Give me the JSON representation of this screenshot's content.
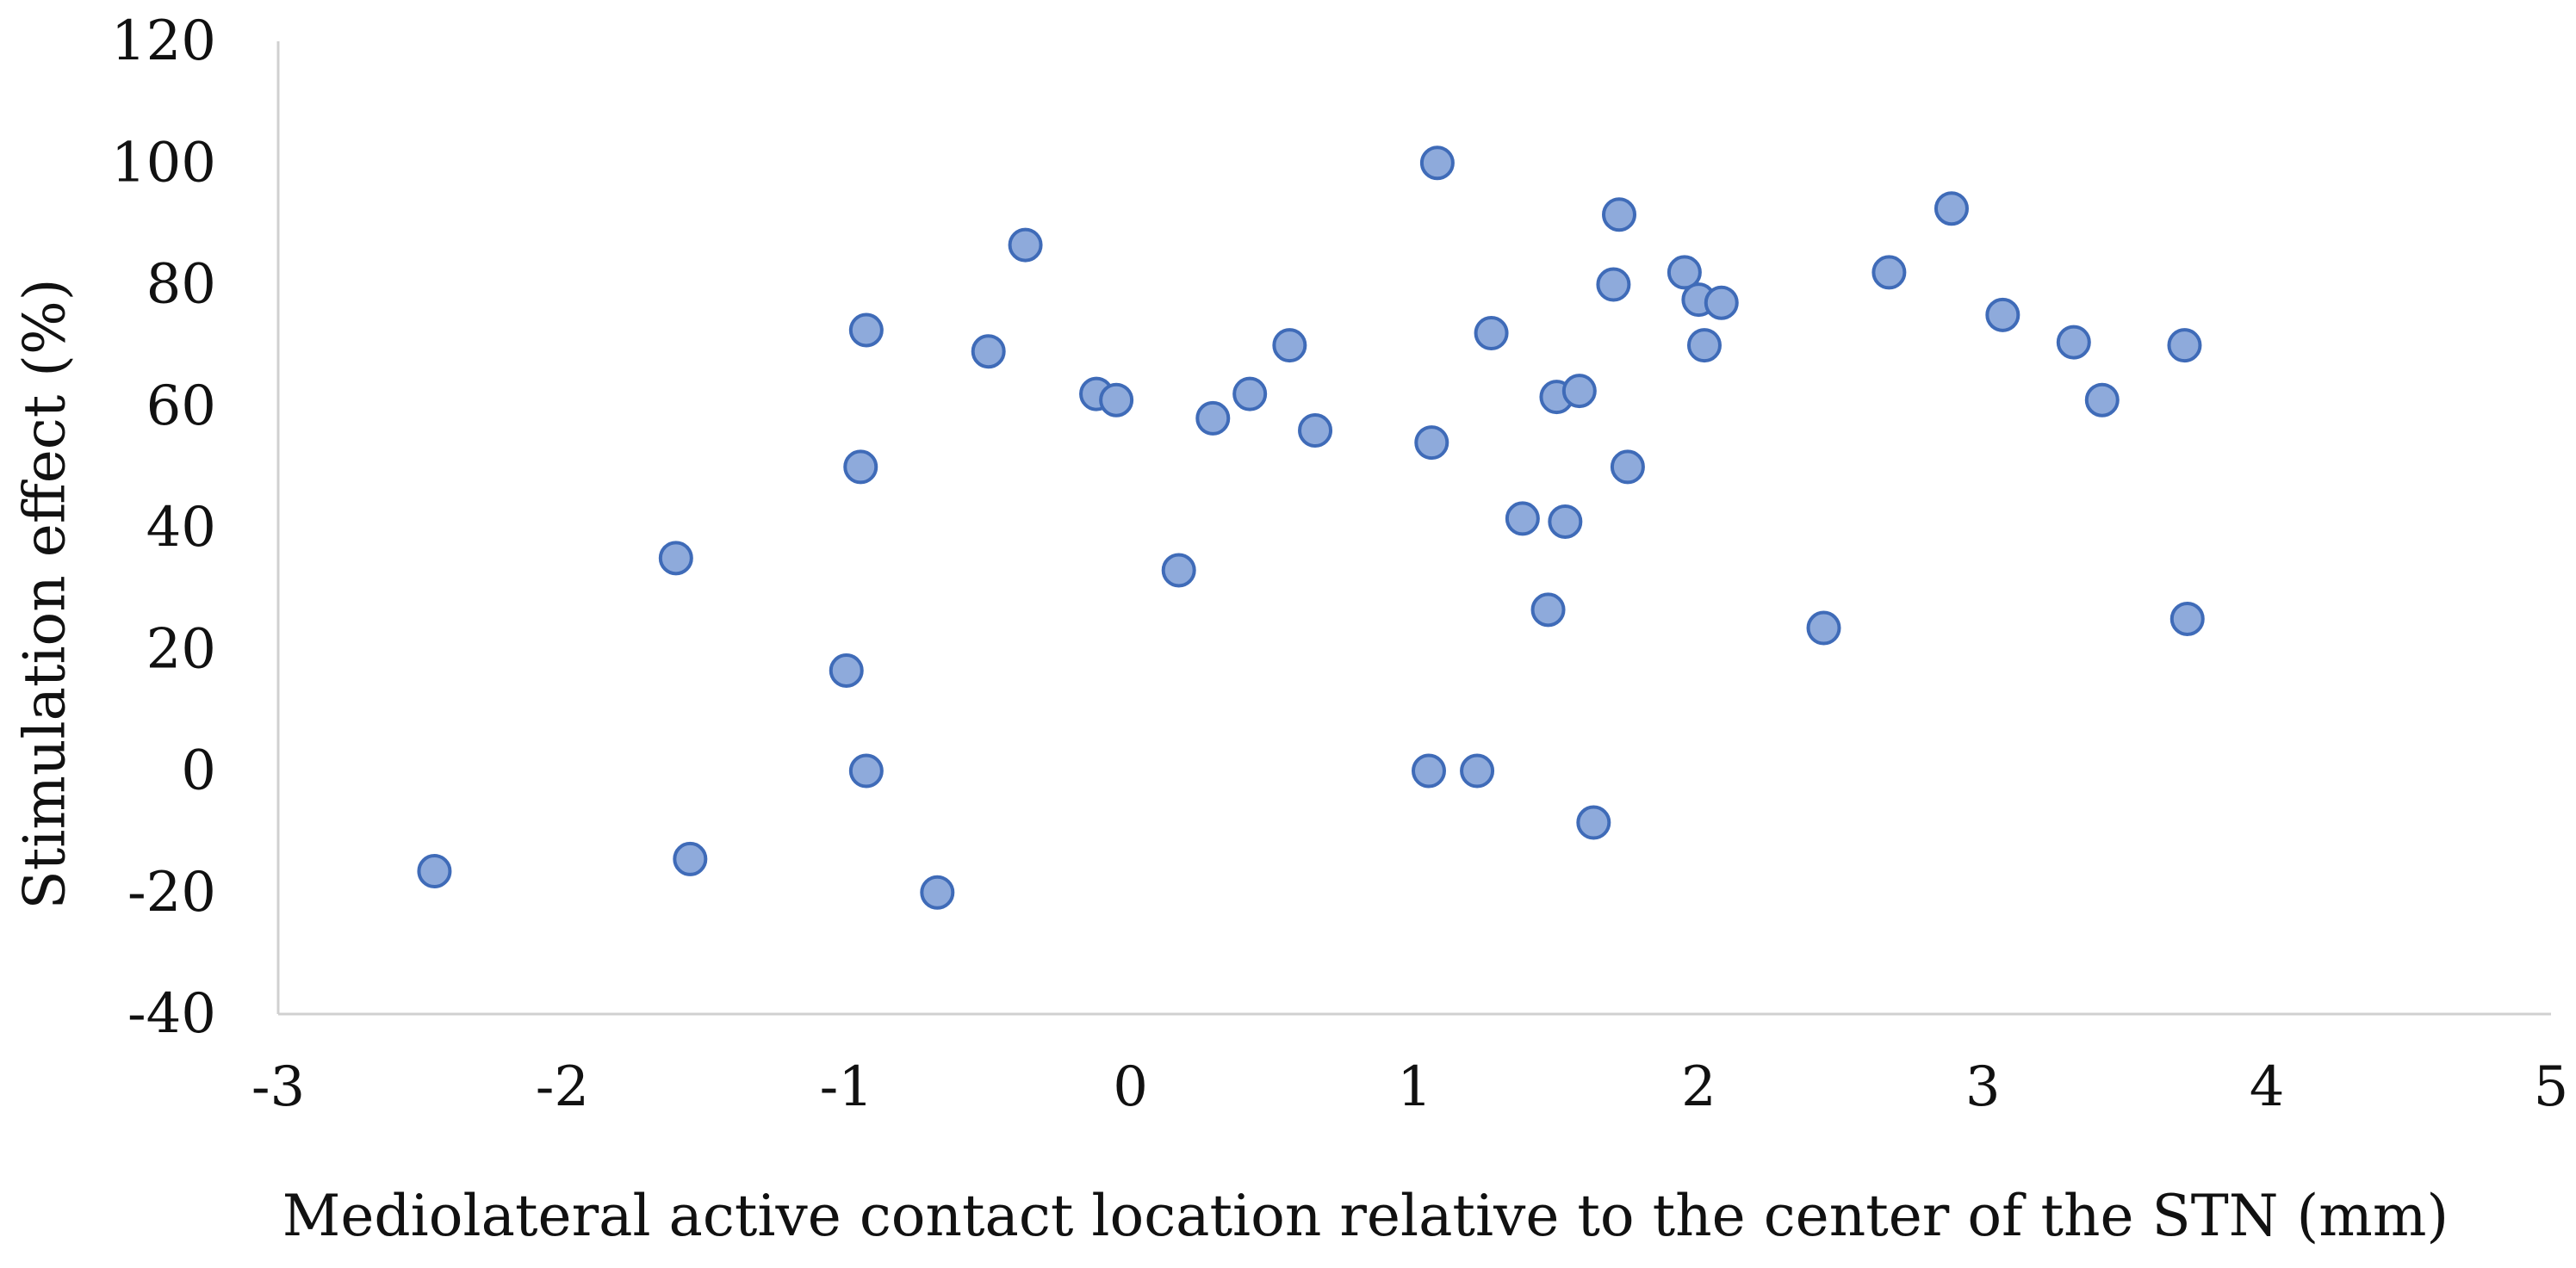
{
  "chart_data": {
    "type": "scatter",
    "title": "",
    "xlabel": "Mediolateral active contact location relative to the center of the STN (mm)",
    "ylabel": "Stimulation effect (%)",
    "xlim": [
      -3,
      5
    ],
    "ylim": [
      -40,
      120
    ],
    "xticks": [
      "-3",
      "-2",
      "-1",
      "0",
      "1",
      "2",
      "3",
      "4",
      "5"
    ],
    "yticks": [
      "120",
      "100",
      "80",
      "60",
      "40",
      "20",
      "0",
      "-20",
      "-40"
    ],
    "grid": false,
    "legend": "none",
    "marker_color": "#8eaadb",
    "marker_edge_color": "#3f6bb8",
    "series": [
      {
        "points": [
          {
            "x": -2.45,
            "y": -16.5
          },
          {
            "x": -1.6,
            "y": 35
          },
          {
            "x": -1.55,
            "y": -14.5
          },
          {
            "x": -1.0,
            "y": 16.5
          },
          {
            "x": -0.95,
            "y": 50
          },
          {
            "x": -0.93,
            "y": 72.5
          },
          {
            "x": -0.93,
            "y": 0
          },
          {
            "x": -0.68,
            "y": -20
          },
          {
            "x": -0.5,
            "y": 69
          },
          {
            "x": -0.37,
            "y": 86.5
          },
          {
            "x": -0.12,
            "y": 62
          },
          {
            "x": -0.05,
            "y": 61
          },
          {
            "x": 0.17,
            "y": 33
          },
          {
            "x": 0.29,
            "y": 58
          },
          {
            "x": 0.42,
            "y": 62
          },
          {
            "x": 0.56,
            "y": 70
          },
          {
            "x": 0.65,
            "y": 56
          },
          {
            "x": 1.05,
            "y": 0
          },
          {
            "x": 1.06,
            "y": 54
          },
          {
            "x": 1.08,
            "y": 100
          },
          {
            "x": 1.22,
            "y": 0
          },
          {
            "x": 1.27,
            "y": 72
          },
          {
            "x": 1.38,
            "y": 41.5
          },
          {
            "x": 1.47,
            "y": 26.5
          },
          {
            "x": 1.5,
            "y": 61.5
          },
          {
            "x": 1.53,
            "y": 41
          },
          {
            "x": 1.58,
            "y": 62.5
          },
          {
            "x": 1.63,
            "y": -8.5
          },
          {
            "x": 1.7,
            "y": 80
          },
          {
            "x": 1.72,
            "y": 91.5
          },
          {
            "x": 1.75,
            "y": 50
          },
          {
            "x": 1.95,
            "y": 82
          },
          {
            "x": 2.0,
            "y": 77.5
          },
          {
            "x": 2.02,
            "y": 70
          },
          {
            "x": 2.08,
            "y": 77
          },
          {
            "x": 2.44,
            "y": 23.5
          },
          {
            "x": 2.67,
            "y": 82
          },
          {
            "x": 2.89,
            "y": 92.5
          },
          {
            "x": 3.07,
            "y": 75
          },
          {
            "x": 3.32,
            "y": 70.5
          },
          {
            "x": 3.42,
            "y": 61
          },
          {
            "x": 3.71,
            "y": 70
          },
          {
            "x": 3.72,
            "y": 25
          }
        ]
      }
    ]
  }
}
